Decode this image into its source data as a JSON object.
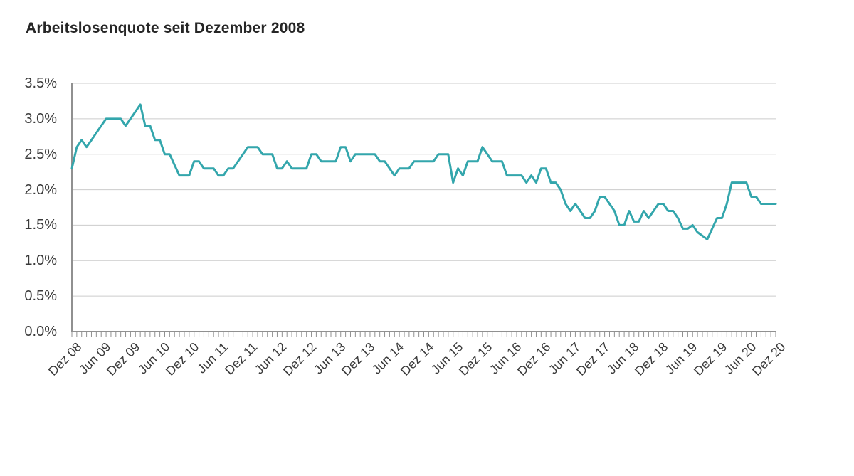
{
  "title": "Arbeitslosenquote seit Dezember 2008",
  "chart_data": {
    "type": "line",
    "title": "Arbeitslosenquote seit Dezember 2008",
    "unit": "%",
    "x_start": "Dez 08",
    "x_interval_months": 1,
    "x_tick_every_n_points": 6,
    "x_tick_labels": [
      "Dez 08",
      "Jun 09",
      "Dez 09",
      "Jun 10",
      "Dez 10",
      "Jun 11",
      "Dez 11",
      "Jun 12",
      "Dez 12",
      "Jun 13",
      "Dez 13",
      "Jun 14",
      "Dez 14",
      "Jun 15",
      "Dez 15",
      "Jun 16",
      "Dez 16",
      "Jun 17",
      "Dez 17",
      "Jun 18",
      "Dez 18",
      "Jun 19",
      "Dez 19",
      "Jun 20",
      "Dez 20"
    ],
    "y_tick_labels": [
      "0.0%",
      "0.5%",
      "1.0%",
      "1.5%",
      "2.0%",
      "2.5%",
      "3.0%",
      "3.5%"
    ],
    "y_tick_values": [
      0,
      0.5,
      1.0,
      1.5,
      2.0,
      2.5,
      3.0,
      3.5
    ],
    "ylim": [
      0,
      3.5
    ],
    "grid": true,
    "legend": false,
    "line_color": "#33a6ac",
    "grid_color": "#cccccc",
    "axis_color": "#909090",
    "label_color": "#3a3a3a",
    "values": [
      2.3,
      2.6,
      2.7,
      2.6,
      2.7,
      2.8,
      2.9,
      3.0,
      3.0,
      3.0,
      3.0,
      2.9,
      3.0,
      3.1,
      3.2,
      2.9,
      2.9,
      2.7,
      2.7,
      2.5,
      2.5,
      2.35,
      2.2,
      2.2,
      2.2,
      2.4,
      2.4,
      2.3,
      2.3,
      2.3,
      2.2,
      2.2,
      2.3,
      2.3,
      2.4,
      2.5,
      2.6,
      2.6,
      2.6,
      2.5,
      2.5,
      2.5,
      2.3,
      2.3,
      2.4,
      2.3,
      2.3,
      2.3,
      2.3,
      2.5,
      2.5,
      2.4,
      2.4,
      2.4,
      2.4,
      2.6,
      2.6,
      2.4,
      2.5,
      2.5,
      2.5,
      2.5,
      2.5,
      2.4,
      2.4,
      2.3,
      2.2,
      2.3,
      2.3,
      2.3,
      2.4,
      2.4,
      2.4,
      2.4,
      2.4,
      2.5,
      2.5,
      2.5,
      2.1,
      2.3,
      2.2,
      2.4,
      2.4,
      2.4,
      2.6,
      2.5,
      2.4,
      2.4,
      2.4,
      2.2,
      2.2,
      2.2,
      2.2,
      2.1,
      2.2,
      2.1,
      2.3,
      2.3,
      2.1,
      2.1,
      2.0,
      1.8,
      1.7,
      1.8,
      1.7,
      1.6,
      1.6,
      1.7,
      1.9,
      1.9,
      1.8,
      1.7,
      1.5,
      1.5,
      1.7,
      1.55,
      1.55,
      1.7,
      1.6,
      1.7,
      1.8,
      1.8,
      1.7,
      1.7,
      1.6,
      1.45,
      1.45,
      1.5,
      1.4,
      1.35,
      1.3,
      1.45,
      1.6,
      1.6,
      1.8,
      2.1,
      2.1,
      2.1,
      2.1,
      1.9,
      1.9,
      1.8,
      1.8,
      1.8,
      1.8
    ]
  }
}
